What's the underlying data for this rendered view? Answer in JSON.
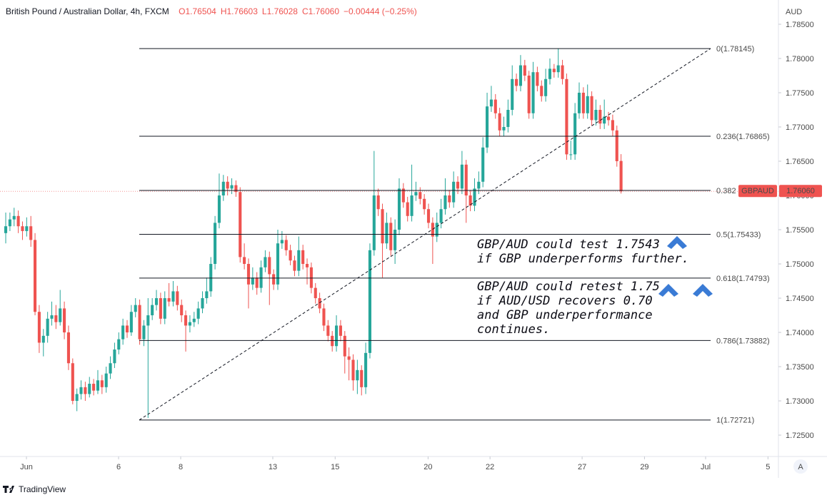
{
  "chart_data": {
    "type": "candlestick",
    "title": "British Pound / Australian Dollar, 4h, FXCM",
    "header_values": [
      "O1.76504",
      "H1.76603",
      "L1.76028",
      "C1.76060",
      "−0.00444 (−0.25%)"
    ],
    "currency": "AUD",
    "symbol": "GBPAUD",
    "last_price_label": "1.76060",
    "up_color": "#26a69a",
    "down_color": "#ef5350",
    "grid": false,
    "xlim": [
      -1.37,
      184.6
    ],
    "ylim": [
      1.72188,
      1.78854
    ],
    "yticks": [
      {
        "value": 1.725,
        "label": "1.72500"
      },
      {
        "value": 1.73,
        "label": "1.73000"
      },
      {
        "value": 1.735,
        "label": "1.73500"
      },
      {
        "value": 1.74,
        "label": "1.74000"
      },
      {
        "value": 1.745,
        "label": "1.74500"
      },
      {
        "value": 1.75,
        "label": "1.75000"
      },
      {
        "value": 1.755,
        "label": "1.75500"
      },
      {
        "value": 1.76,
        "label": "1.76000"
      },
      {
        "value": 1.765,
        "label": "1.76500"
      },
      {
        "value": 1.77,
        "label": "1.77000"
      },
      {
        "value": 1.775,
        "label": "1.77500"
      },
      {
        "value": 1.78,
        "label": "1.78000"
      },
      {
        "value": 1.785,
        "label": "1.78500"
      }
    ],
    "xticks": [
      {
        "value": 4.95,
        "label": "Jun"
      },
      {
        "value": 26.96,
        "label": "6"
      },
      {
        "value": 41.8,
        "label": "8"
      },
      {
        "value": 63.8,
        "label": "13"
      },
      {
        "value": 78.7,
        "label": "15"
      },
      {
        "value": 100.9,
        "label": "20"
      },
      {
        "value": 115.7,
        "label": "22"
      },
      {
        "value": 137.7,
        "label": "27"
      },
      {
        "value": 152.6,
        "label": "29"
      },
      {
        "value": 167.2,
        "label": "Jul"
      },
      {
        "value": 182.1,
        "label": "5"
      }
    ],
    "ohlc": [
      [
        1.7545,
        1.7575,
        1.753,
        1.7555
      ],
      [
        1.7555,
        1.7575,
        1.7548,
        1.7565
      ],
      [
        1.7565,
        1.7582,
        1.7555,
        1.757
      ],
      [
        1.757,
        1.7578,
        1.7545,
        1.7555
      ],
      [
        1.7555,
        1.7562,
        1.7535,
        1.7548
      ],
      [
        1.7548,
        1.7568,
        1.754,
        1.7555
      ],
      [
        1.7555,
        1.757,
        1.7525,
        1.7535
      ],
      [
        1.7535,
        1.7545,
        1.7425,
        1.743
      ],
      [
        1.743,
        1.744,
        1.737,
        1.7385
      ],
      [
        1.7385,
        1.7405,
        1.7365,
        1.7395
      ],
      [
        1.7395,
        1.743,
        1.7385,
        1.742
      ],
      [
        1.742,
        1.7445,
        1.741,
        1.7425
      ],
      [
        1.7425,
        1.744,
        1.7405,
        1.7415
      ],
      [
        1.7415,
        1.7462,
        1.741,
        1.7435
      ],
      [
        1.7435,
        1.7445,
        1.739,
        1.74
      ],
      [
        1.74,
        1.741,
        1.7345,
        1.7355
      ],
      [
        1.7355,
        1.7362,
        1.7295,
        1.73
      ],
      [
        1.73,
        1.7318,
        1.7285,
        1.731
      ],
      [
        1.731,
        1.733,
        1.7302,
        1.732
      ],
      [
        1.732,
        1.7328,
        1.73,
        1.731
      ],
      [
        1.731,
        1.7335,
        1.7305,
        1.7325
      ],
      [
        1.7325,
        1.7332,
        1.7308,
        1.7315
      ],
      [
        1.7315,
        1.7345,
        1.731,
        1.733
      ],
      [
        1.733,
        1.7338,
        1.731,
        1.732
      ],
      [
        1.732,
        1.735,
        1.7312,
        1.734
      ],
      [
        1.734,
        1.7365,
        1.7332,
        1.7355
      ],
      [
        1.7355,
        1.7385,
        1.7348,
        1.7375
      ],
      [
        1.7375,
        1.74,
        1.7368,
        1.739
      ],
      [
        1.739,
        1.742,
        1.7382,
        1.741
      ],
      [
        1.741,
        1.7418,
        1.7392,
        1.74
      ],
      [
        1.74,
        1.744,
        1.7395,
        1.743
      ],
      [
        1.743,
        1.745,
        1.7422,
        1.744
      ],
      [
        1.744,
        1.7448,
        1.7382,
        1.739
      ],
      [
        1.739,
        1.7418,
        1.738,
        1.741
      ],
      [
        1.741,
        1.745,
        1.7275,
        1.7425
      ],
      [
        1.7425,
        1.745,
        1.7418,
        1.744
      ],
      [
        1.744,
        1.7462,
        1.7432,
        1.745
      ],
      [
        1.745,
        1.7458,
        1.7412,
        1.742
      ],
      [
        1.742,
        1.746,
        1.7412,
        1.745
      ],
      [
        1.745,
        1.7472,
        1.7438,
        1.7445
      ],
      [
        1.7445,
        1.7475,
        1.7438,
        1.746
      ],
      [
        1.746,
        1.7468,
        1.7432,
        1.744
      ],
      [
        1.744,
        1.7448,
        1.7415,
        1.7425
      ],
      [
        1.7425,
        1.7432,
        1.7372,
        1.741
      ],
      [
        1.741,
        1.7425,
        1.74,
        1.7415
      ],
      [
        1.7415,
        1.743,
        1.7408,
        1.742
      ],
      [
        1.742,
        1.7445,
        1.7412,
        1.7435
      ],
      [
        1.7435,
        1.746,
        1.7428,
        1.745
      ],
      [
        1.745,
        1.748,
        1.7442,
        1.746
      ],
      [
        1.746,
        1.751,
        1.7452,
        1.75
      ],
      [
        1.75,
        1.757,
        1.7492,
        1.756
      ],
      [
        1.756,
        1.7632,
        1.7552,
        1.76
      ],
      [
        1.76,
        1.763,
        1.7592,
        1.762
      ],
      [
        1.762,
        1.7628,
        1.76,
        1.761
      ],
      [
        1.761,
        1.7625,
        1.7602,
        1.7615
      ],
      [
        1.7615,
        1.7622,
        1.7598,
        1.7605
      ],
      [
        1.7605,
        1.7612,
        1.7502,
        1.751
      ],
      [
        1.751,
        1.753,
        1.7492,
        1.75
      ],
      [
        1.75,
        1.7508,
        1.7435,
        1.747
      ],
      [
        1.747,
        1.7495,
        1.7462,
        1.748
      ],
      [
        1.748,
        1.7488,
        1.7455,
        1.7465
      ],
      [
        1.7465,
        1.7505,
        1.7458,
        1.7495
      ],
      [
        1.7495,
        1.752,
        1.7488,
        1.751
      ],
      [
        1.751,
        1.7518,
        1.744,
        1.7485
      ],
      [
        1.7485,
        1.7492,
        1.7462,
        1.747
      ],
      [
        1.747,
        1.755,
        1.7462,
        1.753
      ],
      [
        1.753,
        1.7548,
        1.7522,
        1.7535
      ],
      [
        1.7535,
        1.7542,
        1.7512,
        1.752
      ],
      [
        1.752,
        1.7528,
        1.7498,
        1.7505
      ],
      [
        1.7505,
        1.7512,
        1.7482,
        1.749
      ],
      [
        1.749,
        1.754,
        1.7482,
        1.752
      ],
      [
        1.752,
        1.7528,
        1.7492,
        1.75
      ],
      [
        1.75,
        1.7508,
        1.747,
        1.7495
      ],
      [
        1.7495,
        1.7502,
        1.7457,
        1.7465
      ],
      [
        1.7465,
        1.7472,
        1.7442,
        1.745
      ],
      [
        1.745,
        1.7458,
        1.7428,
        1.7435
      ],
      [
        1.7435,
        1.7442,
        1.7402,
        1.741
      ],
      [
        1.741,
        1.7418,
        1.7387,
        1.7395
      ],
      [
        1.7395,
        1.7402,
        1.7372,
        1.738
      ],
      [
        1.738,
        1.7425,
        1.7372,
        1.741
      ],
      [
        1.741,
        1.7418,
        1.7387,
        1.7395
      ],
      [
        1.7395,
        1.7402,
        1.734,
        1.7365
      ],
      [
        1.7365,
        1.7378,
        1.733,
        1.736
      ],
      [
        1.736,
        1.7368,
        1.7315,
        1.733
      ],
      [
        1.733,
        1.736,
        1.731,
        1.7345
      ],
      [
        1.7345,
        1.7352,
        1.7308,
        1.732
      ],
      [
        1.732,
        1.7385,
        1.731,
        1.737
      ],
      [
        1.737,
        1.753,
        1.7362,
        1.752
      ],
      [
        1.752,
        1.7665,
        1.7512,
        1.76
      ],
      [
        1.76,
        1.761,
        1.757,
        1.758
      ],
      [
        1.758,
        1.7588,
        1.748,
        1.753
      ],
      [
        1.753,
        1.7575,
        1.7522,
        1.756
      ],
      [
        1.756,
        1.7568,
        1.7512,
        1.752
      ],
      [
        1.752,
        1.7565,
        1.75,
        1.755
      ],
      [
        1.755,
        1.7625,
        1.7542,
        1.761
      ],
      [
        1.761,
        1.7618,
        1.7582,
        1.759
      ],
      [
        1.759,
        1.7598,
        1.7562,
        1.757
      ],
      [
        1.757,
        1.7645,
        1.7562,
        1.76
      ],
      [
        1.76,
        1.762,
        1.7592,
        1.7605
      ],
      [
        1.7605,
        1.7612,
        1.7587,
        1.7595
      ],
      [
        1.7595,
        1.7602,
        1.7572,
        1.758
      ],
      [
        1.758,
        1.7588,
        1.7552,
        1.756
      ],
      [
        1.756,
        1.7568,
        1.75,
        1.754
      ],
      [
        1.754,
        1.7575,
        1.7532,
        1.756
      ],
      [
        1.756,
        1.7595,
        1.7552,
        1.758
      ],
      [
        1.758,
        1.7625,
        1.7572,
        1.76
      ],
      [
        1.76,
        1.7608,
        1.7582,
        1.759
      ],
      [
        1.759,
        1.7635,
        1.7582,
        1.762
      ],
      [
        1.762,
        1.7628,
        1.7602,
        1.761
      ],
      [
        1.761,
        1.7665,
        1.7602,
        1.7645
      ],
      [
        1.7645,
        1.7652,
        1.756,
        1.76
      ],
      [
        1.76,
        1.7608,
        1.7577,
        1.7585
      ],
      [
        1.7585,
        1.7625,
        1.7577,
        1.761
      ],
      [
        1.761,
        1.7635,
        1.7602,
        1.762
      ],
      [
        1.762,
        1.7685,
        1.7612,
        1.767
      ],
      [
        1.767,
        1.775,
        1.7662,
        1.773
      ],
      [
        1.773,
        1.776,
        1.7722,
        1.774
      ],
      [
        1.774,
        1.7748,
        1.7712,
        1.772
      ],
      [
        1.772,
        1.7728,
        1.7687,
        1.7695
      ],
      [
        1.7695,
        1.7715,
        1.7687,
        1.77
      ],
      [
        1.77,
        1.774,
        1.7692,
        1.7725
      ],
      [
        1.7725,
        1.779,
        1.7717,
        1.777
      ],
      [
        1.777,
        1.7778,
        1.7752,
        1.776
      ],
      [
        1.776,
        1.7805,
        1.7752,
        1.779
      ],
      [
        1.779,
        1.7798,
        1.7767,
        1.7775
      ],
      [
        1.7775,
        1.7782,
        1.7712,
        1.772
      ],
      [
        1.772,
        1.7795,
        1.7712,
        1.778
      ],
      [
        1.778,
        1.7788,
        1.7752,
        1.776
      ],
      [
        1.776,
        1.7768,
        1.7737,
        1.7745
      ],
      [
        1.7745,
        1.7785,
        1.7737,
        1.777
      ],
      [
        1.777,
        1.78,
        1.7762,
        1.7785
      ],
      [
        1.7785,
        1.7792,
        1.7772,
        1.778
      ],
      [
        1.778,
        1.78145,
        1.7772,
        1.779
      ],
      [
        1.779,
        1.7798,
        1.7762,
        1.777
      ],
      [
        1.777,
        1.7778,
        1.7652,
        1.766
      ],
      [
        1.766,
        1.768,
        1.7652,
        1.766
      ],
      [
        1.766,
        1.7735,
        1.7652,
        1.772
      ],
      [
        1.772,
        1.7765,
        1.7712,
        1.775
      ],
      [
        1.775,
        1.7758,
        1.7712,
        1.772
      ],
      [
        1.772,
        1.7762,
        1.7712,
        1.7745
      ],
      [
        1.7745,
        1.7752,
        1.7702,
        1.771
      ],
      [
        1.771,
        1.774,
        1.7702,
        1.7725
      ],
      [
        1.7725,
        1.7732,
        1.7697,
        1.7705
      ],
      [
        1.7705,
        1.774,
        1.7697,
        1.7715
      ],
      [
        1.7715,
        1.7722,
        1.7702,
        1.771
      ],
      [
        1.771,
        1.7718,
        1.7687,
        1.7695
      ],
      [
        1.7695,
        1.7702,
        1.7642,
        1.765
      ],
      [
        1.76504,
        1.76603,
        1.76028,
        1.7606
      ]
    ],
    "fib_x": [
      31.9,
      168.4
    ],
    "fib_levels": [
      {
        "value": 1.78145,
        "label": "0(1.78145)"
      },
      {
        "value": 1.76865,
        "label": "0.236(1.76865)"
      },
      {
        "value": 1.76073,
        "label": "0.382"
      },
      {
        "value": 1.75433,
        "label": "0.5(1.75433)"
      },
      {
        "value": 1.74793,
        "label": "0.618(1.74793)"
      },
      {
        "value": 1.73882,
        "label": "0.786(1.73882)"
      },
      {
        "value": 1.72721,
        "label": "1(1.72721)"
      }
    ],
    "trendline": {
      "x": [
        31.9,
        168.4
      ],
      "y": [
        1.72721,
        1.78145
      ]
    },
    "annotations": [
      [
        "GBP/AUD could test 1.7543",
        "if GBP underperforms further."
      ],
      [
        "GBP/AUD could retest 1.75",
        "if AUD/USD recovers 0.70",
        "and GBP underperformance",
        "continues."
      ]
    ],
    "reset_button": "A",
    "brand": "TradingView"
  }
}
